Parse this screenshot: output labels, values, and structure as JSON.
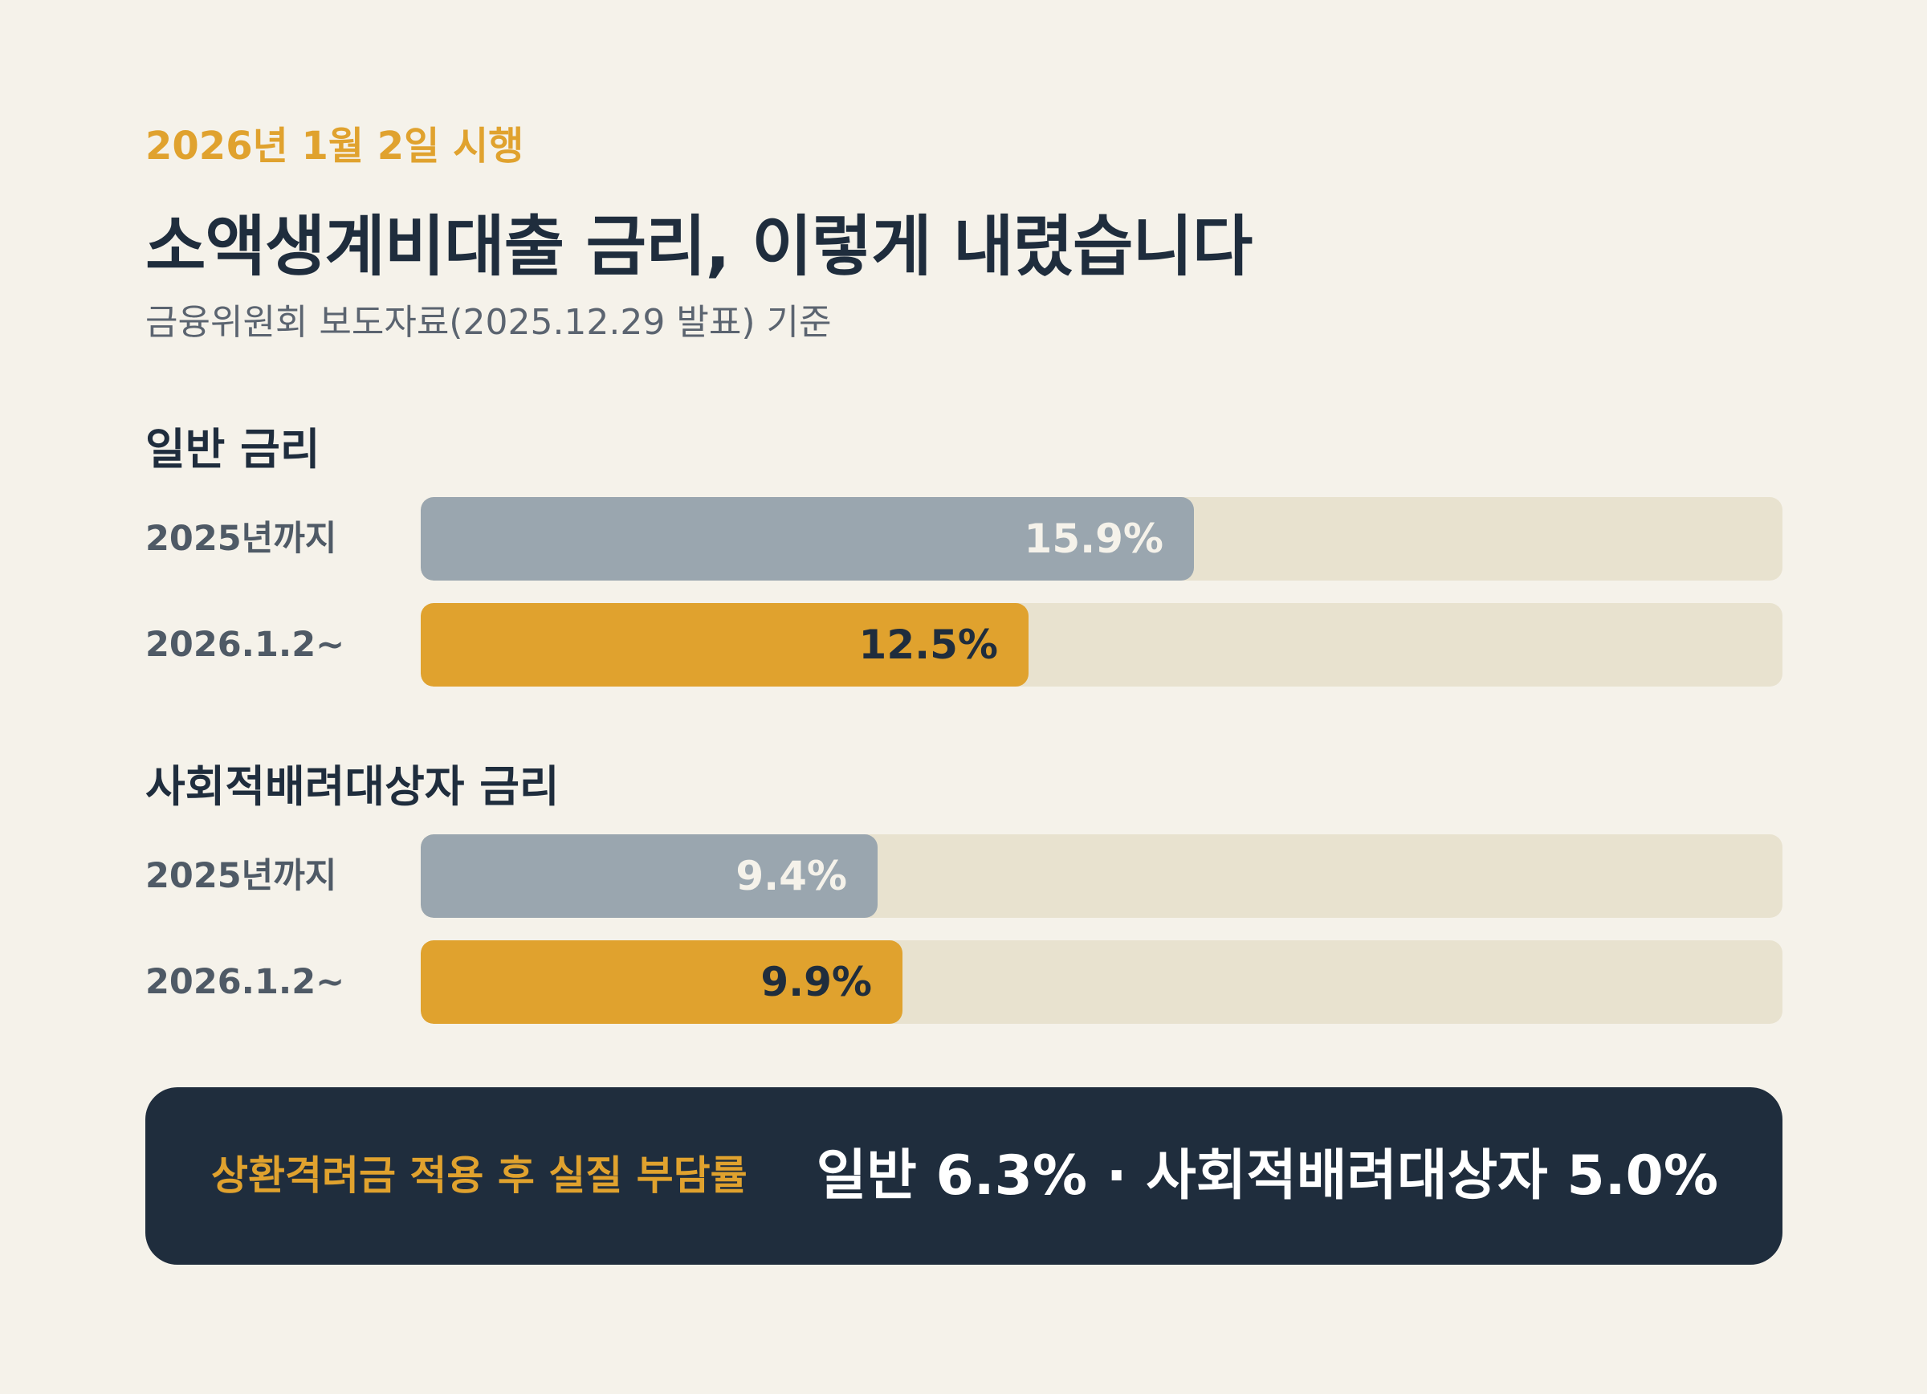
{
  "header": {
    "eyebrow": "2026년 1월 2일 시행",
    "title": "소액생계비대출 금리, 이렇게 내렸습니다",
    "subtitle": "금융위원회 보도자료(2025.12.29 발표) 기준"
  },
  "colors": {
    "accent": "#E0A22E",
    "before_bar": "#9AA6AF",
    "track": "#E8E2CF",
    "dark": "#1F2D3D",
    "background": "#F5F2EA"
  },
  "chart_data": {
    "type": "bar",
    "orientation": "horizontal",
    "xlim": [
      0,
      28
    ],
    "groups": [
      {
        "title": "일반 금리",
        "bars": [
          {
            "label": "2025년까지",
            "value": 15.9,
            "value_label": "15.9%"
          },
          {
            "label": "2026.1.2~",
            "value": 12.5,
            "value_label": "12.5%"
          }
        ]
      },
      {
        "title": "사회적배려대상자 금리",
        "bars": [
          {
            "label": "2025년까지",
            "value": 9.4,
            "value_label": "9.4%"
          },
          {
            "label": "2026.1.2~",
            "value": 9.9,
            "value_label": "9.9%"
          }
        ]
      }
    ]
  },
  "summary": {
    "label": "상환격려금 적용 후 실질 부담률",
    "value": "일반 6.3% · 사회적배려대상자 5.0%"
  }
}
